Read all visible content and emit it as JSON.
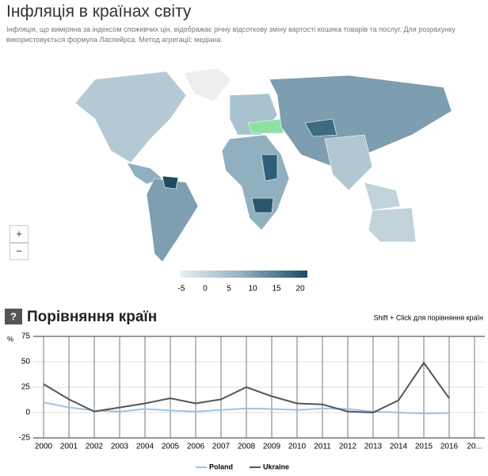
{
  "header": {
    "title": "Інфляція в країнах світу",
    "subtitle": "Інфляція, що виміряна за індексом споживчих цін, відображає річну відсоткову зміну вартості кошика товарів та послуг. Для розрахунку використовується формула Ласпейрса. Метод агрегації: медіана."
  },
  "map": {
    "zoom_in": "+",
    "zoom_out": "−",
    "legend_ticks": [
      -5,
      0,
      5,
      10,
      15,
      20
    ]
  },
  "section": {
    "icon": "?",
    "title": "Порівняння країн",
    "hint": "Shift + Click для порівняння країн"
  },
  "chart_data": {
    "type": "line",
    "y_label": "%",
    "categories": [
      "2000",
      "2001",
      "2002",
      "2003",
      "2004",
      "2005",
      "2006",
      "2007",
      "2008",
      "2009",
      "2010",
      "2011",
      "2012",
      "2013",
      "2014",
      "2015",
      "2016",
      "20..."
    ],
    "series": [
      {
        "name": "Poland",
        "color": "#9cc3e6",
        "values": [
          10,
          5,
          2,
          1,
          3.5,
          2,
          1,
          2.5,
          4,
          3.5,
          2.5,
          4,
          3.5,
          1,
          0,
          -1,
          -0.6,
          null
        ]
      },
      {
        "name": "Ukraine",
        "color": "#555555",
        "values": [
          28,
          13,
          1,
          5,
          9,
          14,
          9,
          13,
          25,
          16,
          9,
          8,
          1,
          0,
          12,
          49,
          14,
          null
        ]
      }
    ],
    "ylim": [
      -25,
      75
    ],
    "yticks": [
      -25,
      0,
      25,
      50,
      75
    ],
    "grid": true
  }
}
